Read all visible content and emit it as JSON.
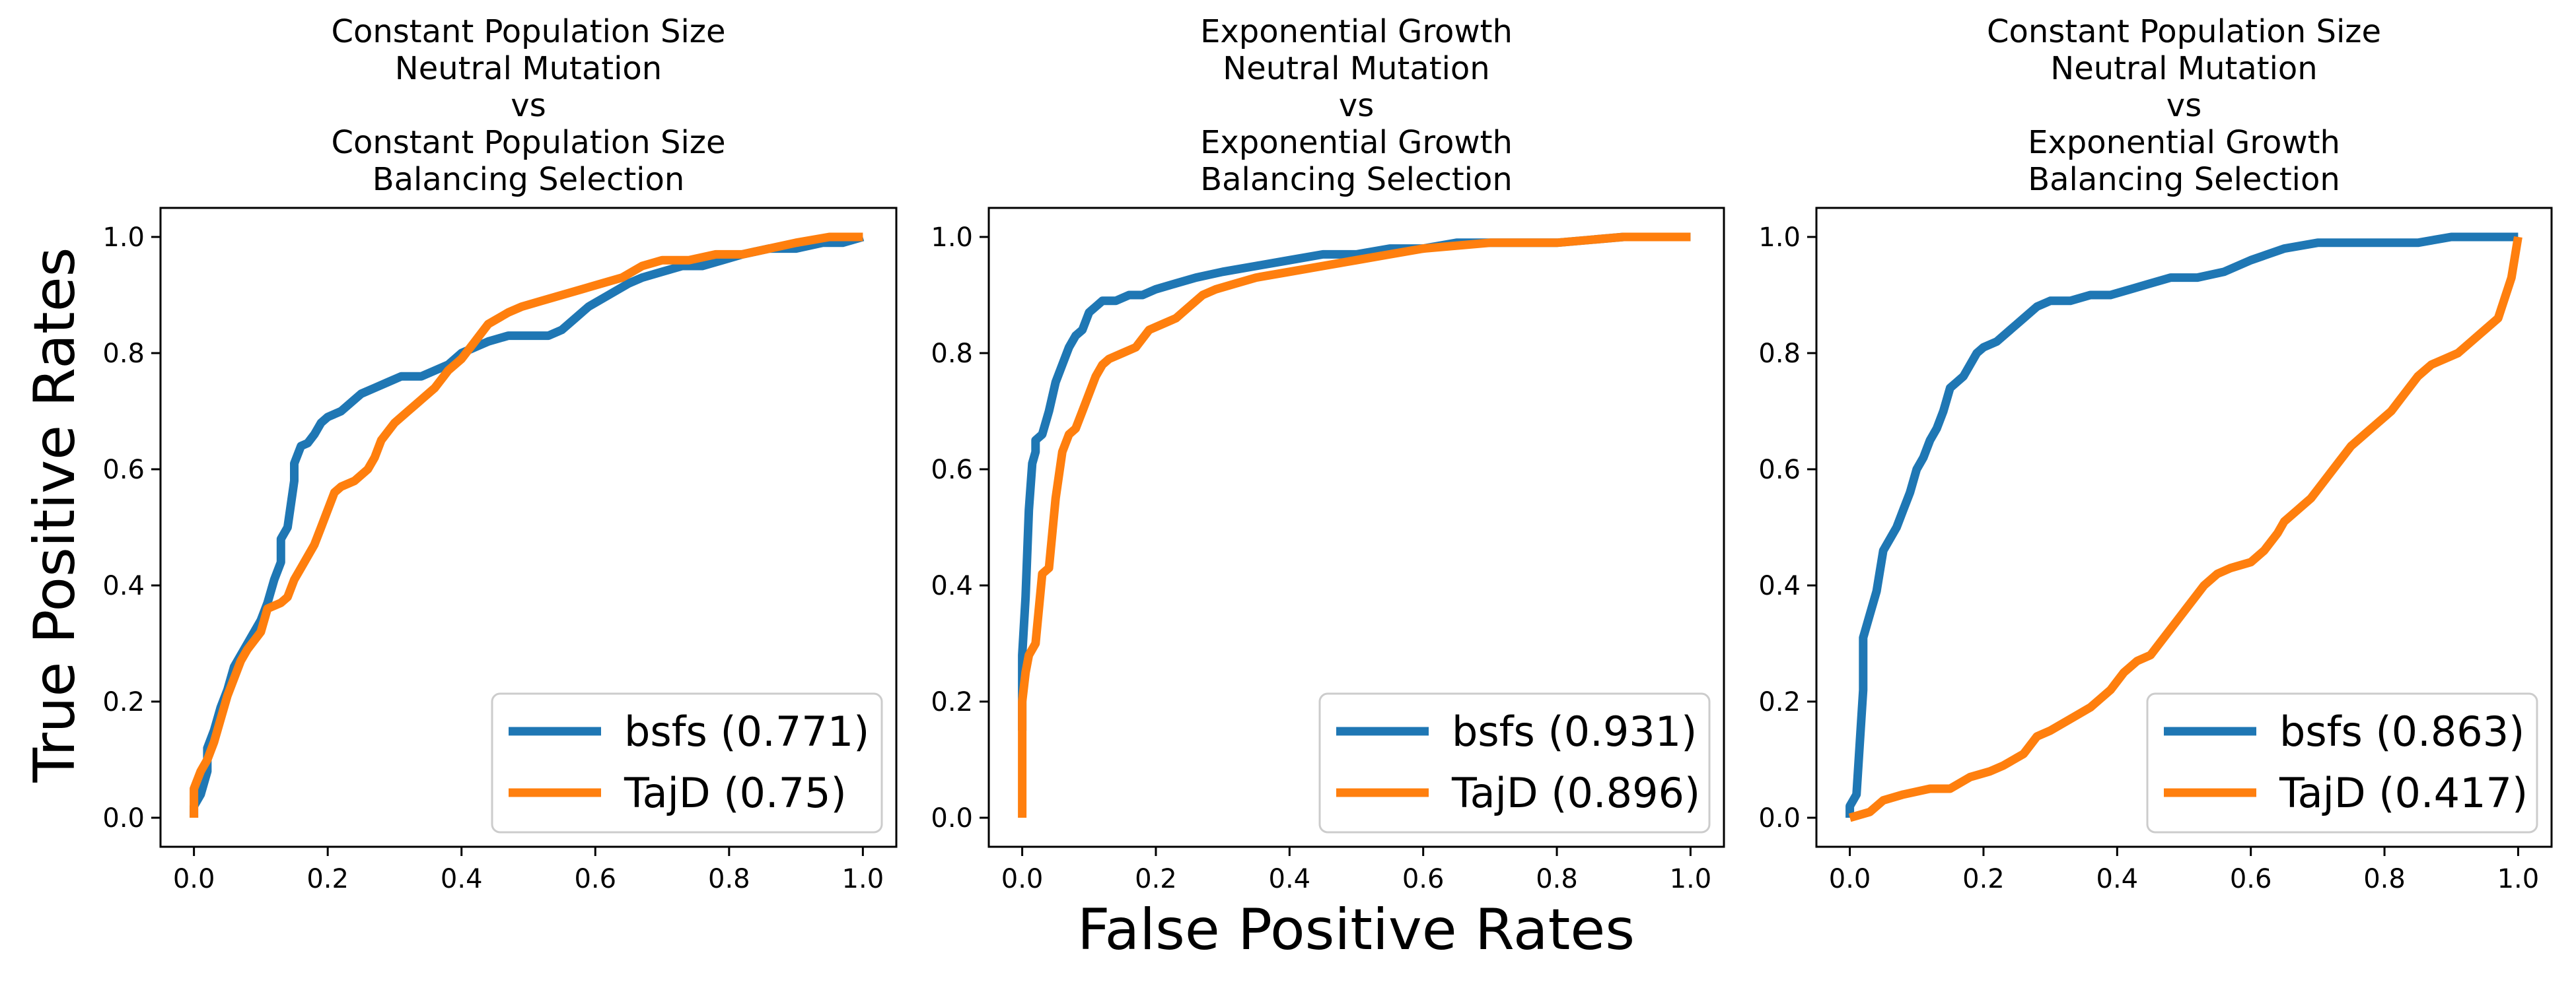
{
  "figure": {
    "ylabel": "True Positive Rates",
    "xlabel": "False Positive Rates"
  },
  "colors": {
    "bsfs": "#1f77b4",
    "TajD": "#ff7f0e"
  },
  "chart_data": [
    {
      "type": "line",
      "title_lines": [
        "Constant Population Size",
        "Neutral Mutation",
        "vs",
        "Constant Population Size",
        "Balancing Selection"
      ],
      "xlim": [
        -0.05,
        1.05
      ],
      "ylim": [
        -0.05,
        1.05
      ],
      "xticks": [
        "0.0",
        "0.2",
        "0.4",
        "0.6",
        "0.8",
        "1.0"
      ],
      "yticks": [
        "0.0",
        "0.2",
        "0.4",
        "0.6",
        "0.8",
        "1.0"
      ],
      "legend_position": "lower-right",
      "grid": false,
      "series": [
        {
          "name": "bsfs (0.771)",
          "key": "bsfs",
          "x": [
            0.0,
            0.0,
            0.01,
            0.02,
            0.02,
            0.03,
            0.04,
            0.05,
            0.06,
            0.08,
            0.1,
            0.11,
            0.12,
            0.13,
            0.13,
            0.14,
            0.15,
            0.15,
            0.16,
            0.17,
            0.18,
            0.19,
            0.2,
            0.22,
            0.24,
            0.25,
            0.27,
            0.29,
            0.31,
            0.34,
            0.36,
            0.38,
            0.4,
            0.42,
            0.44,
            0.47,
            0.5,
            0.53,
            0.55,
            0.57,
            0.59,
            0.62,
            0.65,
            0.67,
            0.7,
            0.73,
            0.76,
            0.79,
            0.82,
            0.86,
            0.9,
            0.94,
            0.97,
            1.0
          ],
          "y": [
            0.0,
            0.02,
            0.04,
            0.08,
            0.12,
            0.15,
            0.19,
            0.22,
            0.26,
            0.3,
            0.34,
            0.37,
            0.41,
            0.44,
            0.48,
            0.5,
            0.58,
            0.61,
            0.64,
            0.645,
            0.66,
            0.68,
            0.69,
            0.7,
            0.72,
            0.73,
            0.74,
            0.75,
            0.76,
            0.76,
            0.77,
            0.78,
            0.8,
            0.81,
            0.82,
            0.83,
            0.83,
            0.83,
            0.84,
            0.86,
            0.88,
            0.9,
            0.92,
            0.93,
            0.94,
            0.95,
            0.95,
            0.96,
            0.97,
            0.98,
            0.98,
            0.99,
            0.99,
            1.0
          ]
        },
        {
          "name": "TajD (0.75)",
          "key": "TajD",
          "x": [
            0.0,
            0.0,
            0.01,
            0.02,
            0.03,
            0.04,
            0.05,
            0.06,
            0.07,
            0.08,
            0.1,
            0.11,
            0.13,
            0.14,
            0.15,
            0.16,
            0.18,
            0.19,
            0.2,
            0.21,
            0.22,
            0.24,
            0.26,
            0.27,
            0.28,
            0.3,
            0.32,
            0.34,
            0.36,
            0.38,
            0.4,
            0.42,
            0.44,
            0.47,
            0.49,
            0.52,
            0.55,
            0.58,
            0.61,
            0.64,
            0.67,
            0.7,
            0.74,
            0.78,
            0.82,
            0.86,
            0.9,
            0.95,
            1.0
          ],
          "y": [
            0.0,
            0.05,
            0.08,
            0.1,
            0.13,
            0.17,
            0.21,
            0.24,
            0.27,
            0.29,
            0.32,
            0.36,
            0.37,
            0.38,
            0.41,
            0.43,
            0.47,
            0.5,
            0.53,
            0.56,
            0.57,
            0.58,
            0.6,
            0.62,
            0.65,
            0.68,
            0.7,
            0.72,
            0.74,
            0.77,
            0.79,
            0.82,
            0.85,
            0.87,
            0.88,
            0.89,
            0.9,
            0.91,
            0.92,
            0.93,
            0.95,
            0.96,
            0.96,
            0.97,
            0.97,
            0.98,
            0.99,
            1.0,
            1.0
          ]
        }
      ]
    },
    {
      "type": "line",
      "title_lines": [
        "Exponential Growth",
        "Neutral Mutation",
        "vs",
        "Exponential Growth",
        "Balancing Selection"
      ],
      "xlim": [
        -0.05,
        1.05
      ],
      "ylim": [
        -0.05,
        1.05
      ],
      "xticks": [
        "0.0",
        "0.2",
        "0.4",
        "0.6",
        "0.8",
        "1.0"
      ],
      "yticks": [
        "0.0",
        "0.2",
        "0.4",
        "0.6",
        "0.8",
        "1.0"
      ],
      "legend_position": "lower-right",
      "grid": false,
      "series": [
        {
          "name": "bsfs (0.931)",
          "key": "bsfs",
          "x": [
            0.0,
            0.0,
            0.005,
            0.01,
            0.015,
            0.02,
            0.02,
            0.03,
            0.04,
            0.05,
            0.06,
            0.07,
            0.08,
            0.09,
            0.1,
            0.11,
            0.12,
            0.14,
            0.16,
            0.18,
            0.2,
            0.23,
            0.26,
            0.3,
            0.35,
            0.4,
            0.45,
            0.5,
            0.55,
            0.6,
            0.65,
            0.7,
            0.8,
            0.9,
            1.0
          ],
          "y": [
            0.15,
            0.28,
            0.38,
            0.53,
            0.61,
            0.63,
            0.65,
            0.66,
            0.7,
            0.75,
            0.78,
            0.81,
            0.83,
            0.84,
            0.87,
            0.88,
            0.89,
            0.89,
            0.9,
            0.9,
            0.91,
            0.92,
            0.93,
            0.94,
            0.95,
            0.96,
            0.97,
            0.97,
            0.98,
            0.98,
            0.99,
            0.99,
            0.99,
            1.0,
            1.0
          ]
        },
        {
          "name": "TajD (0.896)",
          "key": "TajD",
          "x": [
            0.0,
            0.0,
            0.005,
            0.01,
            0.02,
            0.03,
            0.04,
            0.05,
            0.06,
            0.07,
            0.08,
            0.09,
            0.1,
            0.11,
            0.12,
            0.13,
            0.15,
            0.17,
            0.19,
            0.21,
            0.23,
            0.25,
            0.27,
            0.29,
            0.32,
            0.35,
            0.4,
            0.45,
            0.5,
            0.55,
            0.6,
            0.7,
            0.8,
            0.9,
            1.0
          ],
          "y": [
            0.0,
            0.2,
            0.25,
            0.28,
            0.3,
            0.42,
            0.43,
            0.55,
            0.63,
            0.66,
            0.67,
            0.7,
            0.73,
            0.76,
            0.78,
            0.79,
            0.8,
            0.81,
            0.84,
            0.85,
            0.86,
            0.88,
            0.9,
            0.91,
            0.92,
            0.93,
            0.94,
            0.95,
            0.96,
            0.97,
            0.98,
            0.99,
            0.99,
            1.0,
            1.0
          ]
        }
      ]
    },
    {
      "type": "line",
      "title_lines": [
        "Constant Population Size",
        "Neutral Mutation",
        "vs",
        "Exponential Growth",
        "Balancing Selection"
      ],
      "xlim": [
        -0.05,
        1.05
      ],
      "ylim": [
        -0.05,
        1.05
      ],
      "xticks": [
        "0.0",
        "0.2",
        "0.4",
        "0.6",
        "0.8",
        "1.0"
      ],
      "yticks": [
        "0.0",
        "0.2",
        "0.4",
        "0.6",
        "0.8",
        "1.0"
      ],
      "legend_position": "lower-right",
      "grid": false,
      "series": [
        {
          "name": "bsfs (0.863)",
          "key": "bsfs",
          "x": [
            0.0,
            0.0,
            0.01,
            0.02,
            0.02,
            0.03,
            0.04,
            0.05,
            0.06,
            0.07,
            0.08,
            0.09,
            0.1,
            0.11,
            0.12,
            0.13,
            0.14,
            0.15,
            0.16,
            0.17,
            0.18,
            0.19,
            0.2,
            0.22,
            0.24,
            0.26,
            0.28,
            0.3,
            0.33,
            0.36,
            0.39,
            0.42,
            0.45,
            0.48,
            0.52,
            0.56,
            0.6,
            0.65,
            0.7,
            0.75,
            0.8,
            0.85,
            0.9,
            0.95,
            1.0
          ],
          "y": [
            0.0,
            0.02,
            0.04,
            0.22,
            0.31,
            0.35,
            0.39,
            0.46,
            0.48,
            0.5,
            0.53,
            0.56,
            0.6,
            0.62,
            0.65,
            0.67,
            0.7,
            0.74,
            0.75,
            0.76,
            0.78,
            0.8,
            0.81,
            0.82,
            0.84,
            0.86,
            0.88,
            0.89,
            0.89,
            0.9,
            0.9,
            0.91,
            0.92,
            0.93,
            0.93,
            0.94,
            0.96,
            0.98,
            0.99,
            0.99,
            0.99,
            0.99,
            1.0,
            1.0,
            1.0
          ]
        },
        {
          "name": "TajD (0.417)",
          "key": "TajD",
          "x": [
            0.0,
            0.03,
            0.05,
            0.08,
            0.12,
            0.15,
            0.18,
            0.21,
            0.23,
            0.26,
            0.28,
            0.3,
            0.33,
            0.36,
            0.39,
            0.41,
            0.43,
            0.45,
            0.47,
            0.49,
            0.51,
            0.53,
            0.55,
            0.57,
            0.6,
            0.62,
            0.64,
            0.65,
            0.67,
            0.69,
            0.71,
            0.73,
            0.75,
            0.77,
            0.79,
            0.81,
            0.83,
            0.85,
            0.87,
            0.89,
            0.91,
            0.93,
            0.95,
            0.97,
            0.99,
            1.0
          ],
          "y": [
            0.0,
            0.01,
            0.03,
            0.04,
            0.05,
            0.05,
            0.07,
            0.08,
            0.09,
            0.11,
            0.14,
            0.15,
            0.17,
            0.19,
            0.22,
            0.25,
            0.27,
            0.28,
            0.31,
            0.34,
            0.37,
            0.4,
            0.42,
            0.43,
            0.44,
            0.46,
            0.49,
            0.51,
            0.53,
            0.55,
            0.58,
            0.61,
            0.64,
            0.66,
            0.68,
            0.7,
            0.73,
            0.76,
            0.78,
            0.79,
            0.8,
            0.82,
            0.84,
            0.86,
            0.93,
            1.0
          ]
        }
      ]
    }
  ]
}
